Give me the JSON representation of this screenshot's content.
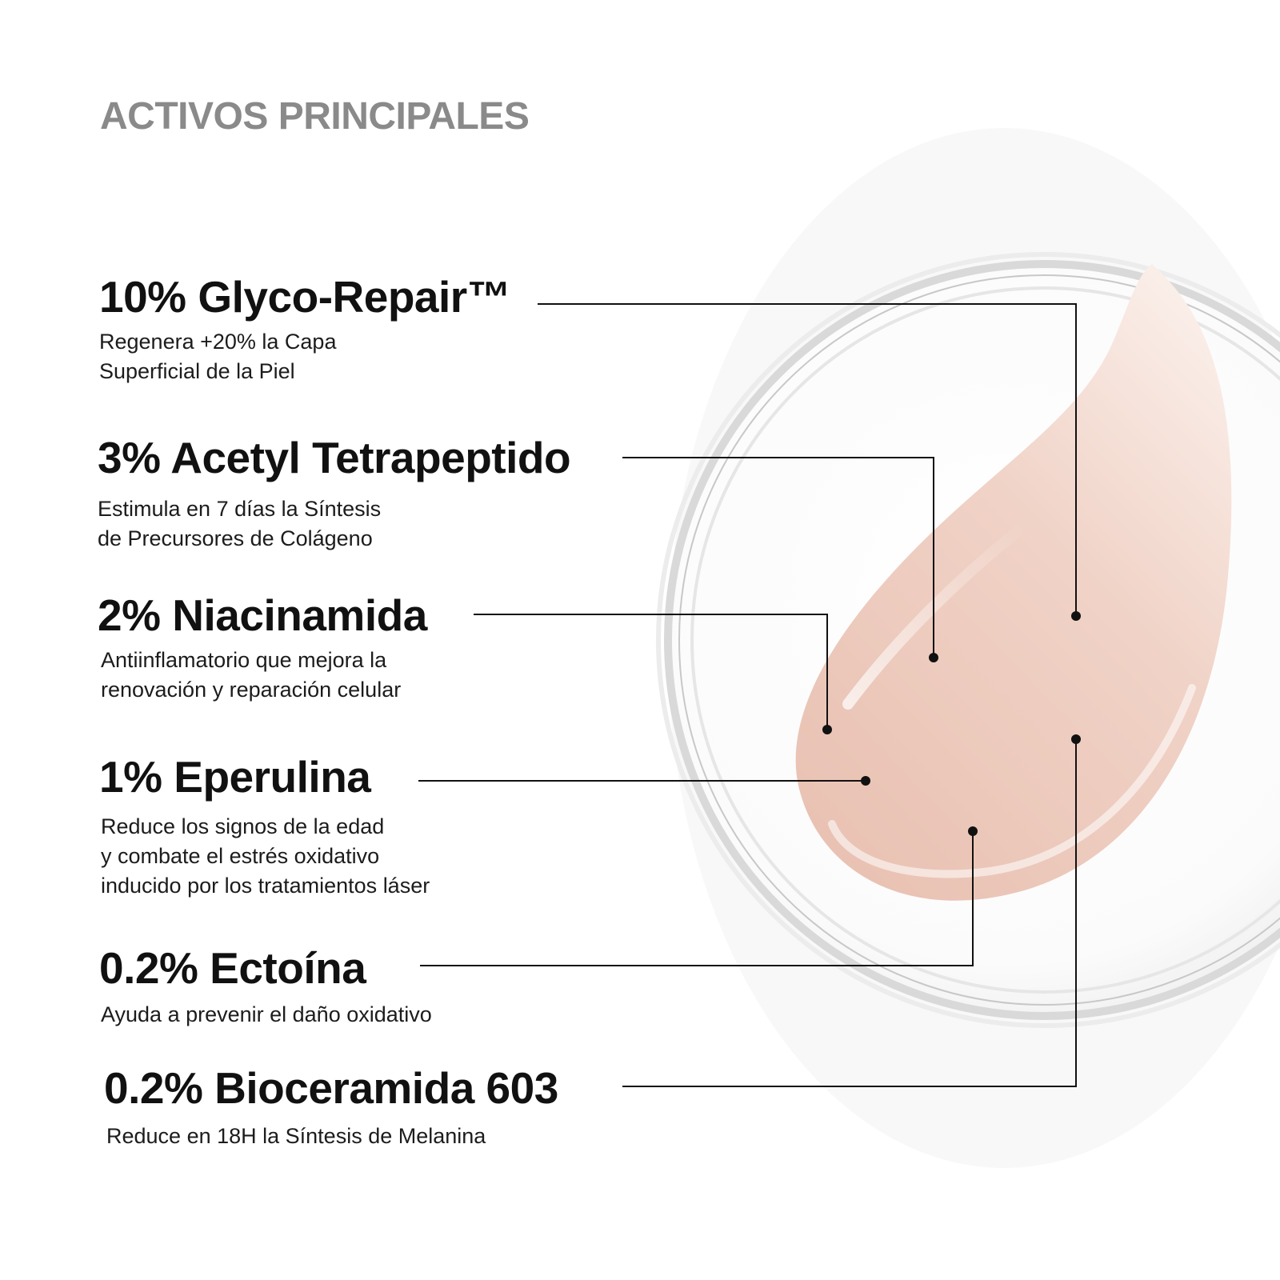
{
  "title": "ACTIVOS PRINCIPALES",
  "colors": {
    "title": "#8a8a8a",
    "text": "#111111",
    "cream": "#efcfc3",
    "dish_rim": "#d6d6d6"
  },
  "ingredients": [
    {
      "name": "10% Glyco-Repair™",
      "desc": [
        "Regenera +20% la Capa",
        "Superficial de la Piel"
      ]
    },
    {
      "name": "3% Acetyl Tetrapeptido",
      "desc": [
        "Estimula en 7 días la Síntesis",
        "de Precursores de Colágeno"
      ]
    },
    {
      "name": "2% Niacinamida",
      "desc": [
        "Antiinflamatorio que mejora la",
        "renovación y reparación celular"
      ]
    },
    {
      "name": "1% Eperulina",
      "desc": [
        "Reduce los signos de la edad",
        "y combate el estrés oxidativo",
        "inducido por los tratamientos láser"
      ]
    },
    {
      "name": "0.2% Ectoína",
      "desc": [
        "Ayuda a prevenir el daño oxidativo"
      ]
    },
    {
      "name": "0.2% Bioceramida 603",
      "desc": [
        "Reduce en 18H la Síntesis de Melanina"
      ]
    }
  ]
}
